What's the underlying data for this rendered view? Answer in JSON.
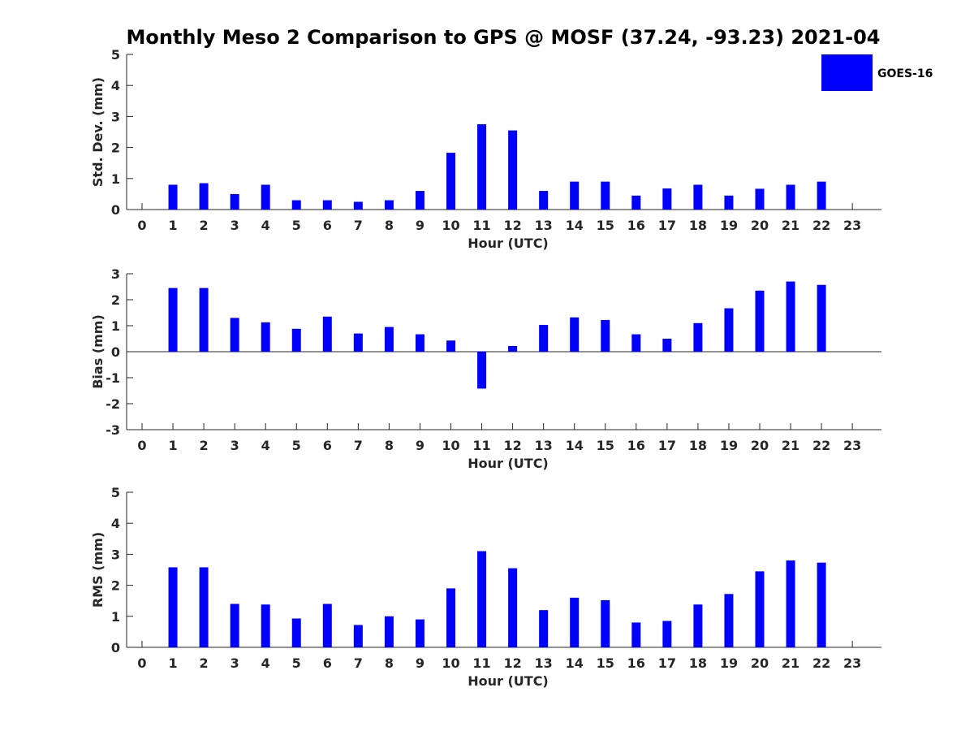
{
  "chart_data": [
    {
      "type": "bar",
      "title": "Monthly Meso 2 Comparison to GPS @ MOSF (37.24, -93.23) 2021-04",
      "xlabel": "Hour (UTC)",
      "ylabel": "Std. Dev. (mm)",
      "ylim": [
        0,
        5
      ],
      "yticks": [
        0,
        1,
        2,
        3,
        4,
        5
      ],
      "categories": [
        "0",
        "1",
        "2",
        "3",
        "4",
        "5",
        "6",
        "7",
        "8",
        "9",
        "10",
        "11",
        "12",
        "13",
        "14",
        "15",
        "16",
        "17",
        "18",
        "19",
        "20",
        "21",
        "22",
        "23"
      ],
      "series": [
        {
          "name": "GOES-16",
          "color": "#0000ff",
          "values": [
            null,
            0.8,
            0.85,
            0.5,
            0.8,
            0.3,
            0.3,
            0.25,
            0.3,
            0.6,
            1.83,
            2.75,
            2.55,
            0.6,
            0.9,
            0.9,
            0.45,
            0.68,
            0.8,
            0.45,
            0.67,
            0.8,
            0.9,
            null
          ]
        }
      ],
      "legend": {
        "position": "top-right",
        "label": "GOES-16"
      }
    },
    {
      "type": "bar",
      "xlabel": "Hour (UTC)",
      "ylabel": "Bias (mm)",
      "ylim": [
        -3,
        3
      ],
      "yticks": [
        -3,
        -2,
        -1,
        0,
        1,
        2,
        3
      ],
      "zero_line": true,
      "categories": [
        "0",
        "1",
        "2",
        "3",
        "4",
        "5",
        "6",
        "7",
        "8",
        "9",
        "10",
        "11",
        "12",
        "13",
        "14",
        "15",
        "16",
        "17",
        "18",
        "19",
        "20",
        "21",
        "22",
        "23"
      ],
      "series": [
        {
          "name": "GOES-16",
          "color": "#0000ff",
          "values": [
            null,
            2.45,
            2.45,
            1.3,
            1.13,
            0.88,
            1.35,
            0.7,
            0.95,
            0.67,
            0.43,
            -1.42,
            0.22,
            1.03,
            1.32,
            1.22,
            0.67,
            0.5,
            1.1,
            1.67,
            2.35,
            2.7,
            2.57,
            null
          ]
        }
      ]
    },
    {
      "type": "bar",
      "xlabel": "Hour (UTC)",
      "ylabel": "RMS (mm)",
      "ylim": [
        0,
        5
      ],
      "yticks": [
        0,
        1,
        2,
        3,
        4,
        5
      ],
      "categories": [
        "0",
        "1",
        "2",
        "3",
        "4",
        "5",
        "6",
        "7",
        "8",
        "9",
        "10",
        "11",
        "12",
        "13",
        "14",
        "15",
        "16",
        "17",
        "18",
        "19",
        "20",
        "21",
        "22",
        "23"
      ],
      "series": [
        {
          "name": "GOES-16",
          "color": "#0000ff",
          "values": [
            null,
            2.58,
            2.58,
            1.4,
            1.38,
            0.93,
            1.4,
            0.72,
            1.0,
            0.9,
            1.9,
            3.1,
            2.55,
            1.2,
            1.6,
            1.52,
            0.8,
            0.85,
            1.38,
            1.72,
            2.45,
            2.8,
            2.73,
            null
          ]
        }
      ]
    }
  ]
}
